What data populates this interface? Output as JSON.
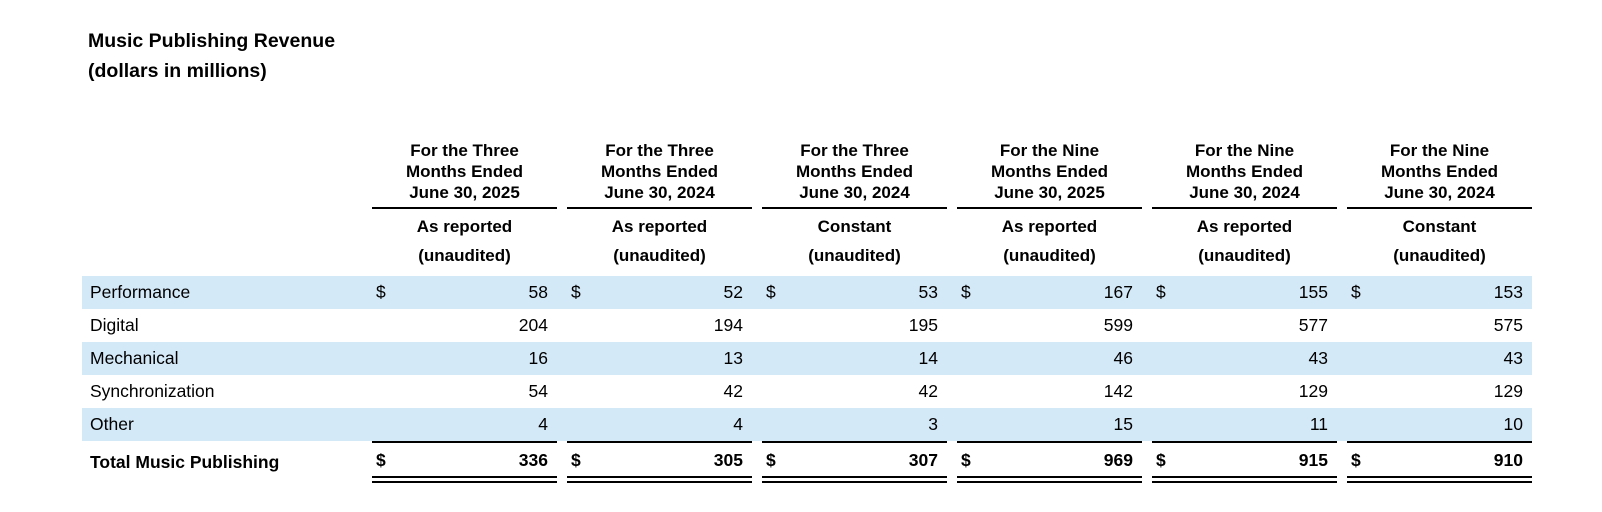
{
  "title": "Music Publishing Revenue",
  "subtitle": "(dollars in millions)",
  "colors": {
    "row_shade": "#d4e9f8",
    "rule": "#000000",
    "text": "#000000",
    "background": "#ffffff"
  },
  "table": {
    "currency_symbol": "$",
    "columns": [
      {
        "period_lines": [
          "For the Three",
          "Months Ended",
          "June 30, 2025"
        ],
        "basis": "As reported",
        "note": "(unaudited)"
      },
      {
        "period_lines": [
          "For the Three",
          "Months Ended",
          "June 30, 2024"
        ],
        "basis": "As reported",
        "note": "(unaudited)"
      },
      {
        "period_lines": [
          "For the Three",
          "Months Ended",
          "June 30, 2024"
        ],
        "basis": "Constant",
        "note": "(unaudited)"
      },
      {
        "period_lines": [
          "For the Nine",
          "Months Ended",
          "June 30, 2025"
        ],
        "basis": "As reported",
        "note": "(unaudited)"
      },
      {
        "period_lines": [
          "For the Nine",
          "Months Ended",
          "June 30, 2024"
        ],
        "basis": "As reported",
        "note": "(unaudited)"
      },
      {
        "period_lines": [
          "For the Nine",
          "Months Ended",
          "June 30, 2024"
        ],
        "basis": "Constant",
        "note": "(unaudited)"
      }
    ],
    "rows": [
      {
        "label": "Performance",
        "values": [
          "58",
          "52",
          "53",
          "167",
          "155",
          "153"
        ]
      },
      {
        "label": "Digital",
        "values": [
          "204",
          "194",
          "195",
          "599",
          "577",
          "575"
        ]
      },
      {
        "label": "Mechanical",
        "values": [
          "16",
          "13",
          "14",
          "46",
          "43",
          "43"
        ]
      },
      {
        "label": "Synchronization",
        "values": [
          "54",
          "42",
          "42",
          "142",
          "129",
          "129"
        ]
      },
      {
        "label": "Other",
        "values": [
          "4",
          "4",
          "3",
          "15",
          "11",
          "10"
        ]
      }
    ],
    "total_row": {
      "label": "Total Music Publishing",
      "values": [
        "336",
        "305",
        "307",
        "969",
        "915",
        "910"
      ]
    }
  },
  "chart_data": {
    "type": "table",
    "title": "Music Publishing Revenue (dollars in millions)",
    "categories": [
      "Performance",
      "Digital",
      "Mechanical",
      "Synchronization",
      "Other",
      "Total Music Publishing"
    ],
    "series": [
      {
        "name": "Three Months Ended June 30, 2025 As reported",
        "values": [
          58,
          204,
          16,
          54,
          4,
          336
        ]
      },
      {
        "name": "Three Months Ended June 30, 2024 As reported",
        "values": [
          52,
          194,
          13,
          42,
          4,
          305
        ]
      },
      {
        "name": "Three Months Ended June 30, 2024 Constant",
        "values": [
          53,
          195,
          14,
          42,
          3,
          307
        ]
      },
      {
        "name": "Nine Months Ended June 30, 2025 As reported",
        "values": [
          167,
          599,
          46,
          142,
          15,
          969
        ]
      },
      {
        "name": "Nine Months Ended June 30, 2024 As reported",
        "values": [
          155,
          577,
          43,
          129,
          11,
          915
        ]
      },
      {
        "name": "Nine Months Ended June 30, 2024 Constant",
        "values": [
          153,
          575,
          43,
          129,
          10,
          910
        ]
      }
    ]
  }
}
